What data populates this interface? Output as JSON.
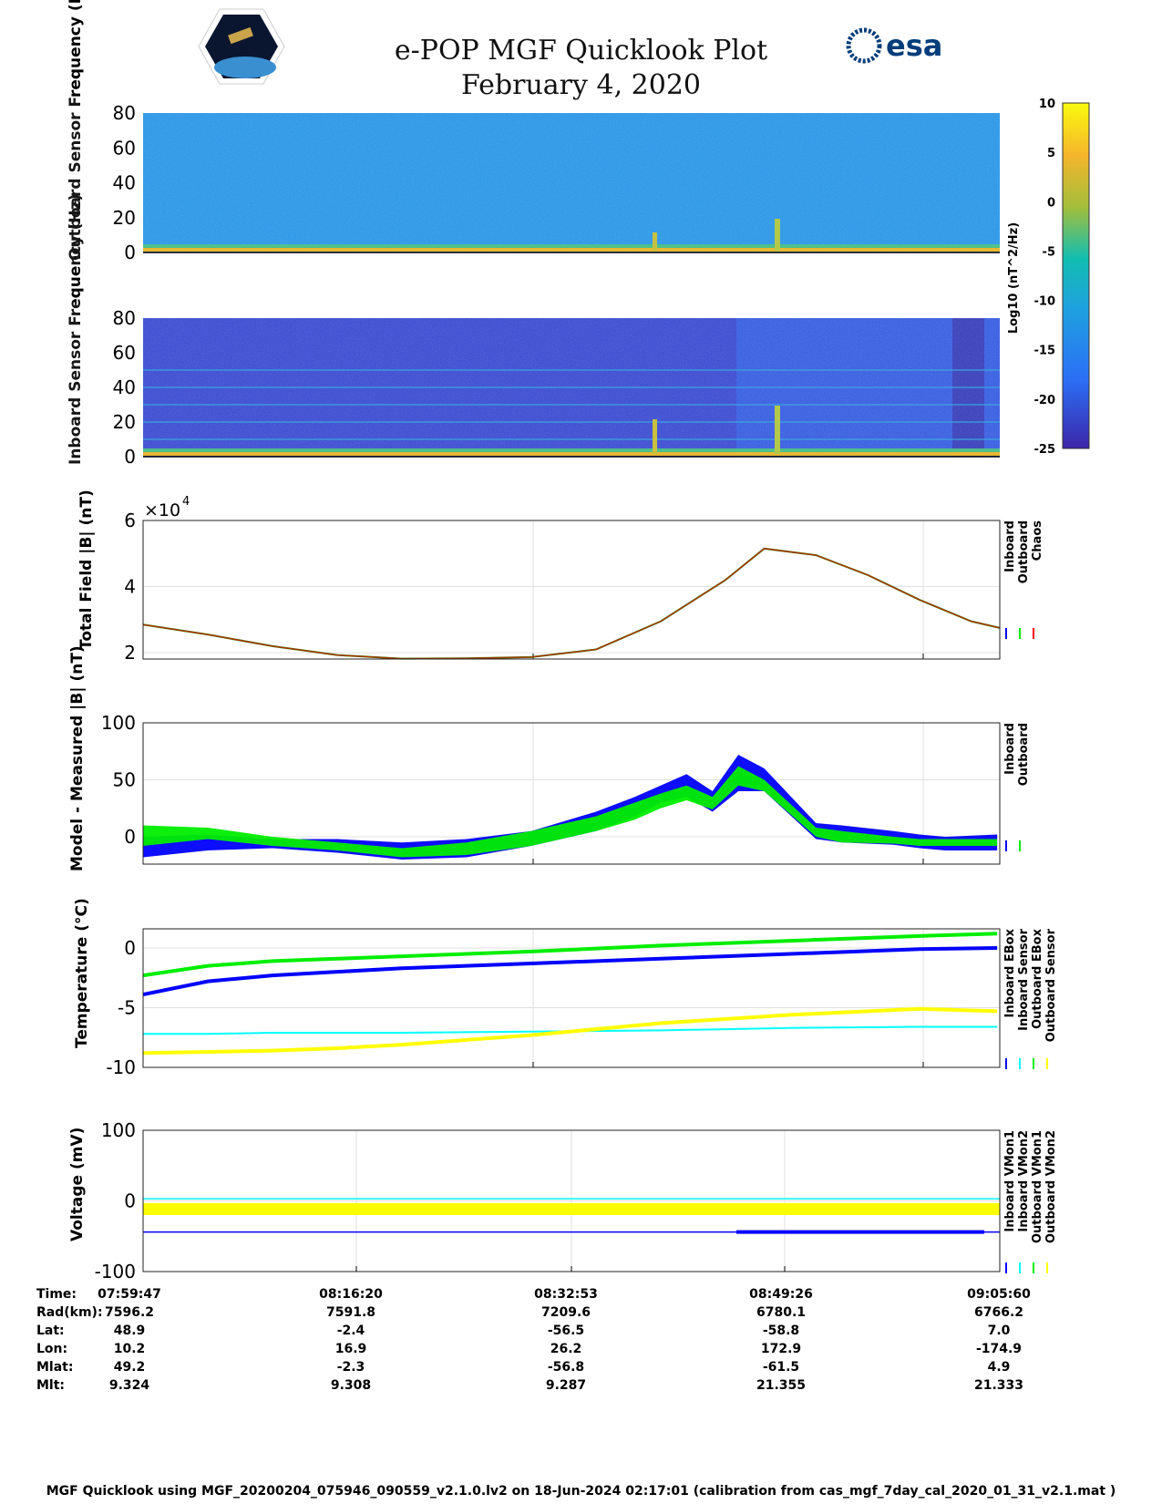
{
  "header": {
    "title": "e-POP MGF Quicklook Plot",
    "date": "February 4, 2020",
    "logo_left": "CASSIOPE",
    "logo_right": "esa"
  },
  "footer": "MGF Quicklook using MGF_20200204_075946_090559_v2.1.0.lv2 on 18-Jun-2024 02:17:01 (calibration from cas_mgf_7day_cal_2020_01_31_v2.1.mat )",
  "table": {
    "labels": [
      "Time:",
      "Rad(km):",
      "Lat:",
      "Lon:",
      "Mlat:",
      "Mlt:"
    ],
    "columns": [
      [
        "07:59:47",
        "7596.2",
        "48.9",
        "10.2",
        "49.2",
        "9.324"
      ],
      [
        "08:16:20",
        "7591.8",
        "-2.4",
        "16.9",
        "-2.3",
        "9.308"
      ],
      [
        "08:32:53",
        "7209.6",
        "-56.5",
        "26.2",
        "-56.8",
        "9.287"
      ],
      [
        "08:49:26",
        "6780.1",
        "-58.8",
        "172.9",
        "-61.5",
        "21.355"
      ],
      [
        "09:05:60",
        "6766.2",
        "7.0",
        "-174.9",
        "4.9",
        "21.333"
      ]
    ]
  },
  "chart_data": [
    {
      "type": "heatmap",
      "ylabel": "Outboard Sensor Frequency (Hz)",
      "yticks": [
        "80",
        "60",
        "40",
        "20",
        "0"
      ],
      "ylim": [
        0,
        80
      ]
    },
    {
      "type": "heatmap",
      "ylabel": "Inboard Sensor Frequency (Hz)",
      "yticks": [
        "80",
        "60",
        "40",
        "20",
        "0"
      ],
      "ylim": [
        0,
        80
      ]
    },
    {
      "type": "colorbar",
      "label": "Log10 (nT^2/Hz)",
      "ticks": [
        "10",
        "5",
        "0",
        "-5",
        "-10",
        "-15",
        "-20",
        "-25"
      ],
      "range": [
        -25,
        10
      ]
    },
    {
      "type": "line",
      "ylabel": "Total Field |B| (nT)",
      "multiplier": "×10",
      "exponent": "4",
      "yticks": [
        "6",
        "4",
        "2"
      ],
      "ylim": [
        1.81,
        6
      ],
      "legend": [
        "Inboard",
        "Outboard",
        "Chaos"
      ],
      "colors": [
        "#0000ff",
        "#00ee00",
        "#ff0000"
      ],
      "x": [
        0,
        5,
        10,
        15,
        20,
        25,
        30,
        35,
        40,
        45,
        48,
        52,
        56,
        60,
        64,
        66.2
      ],
      "y": [
        2.85,
        2.55,
        2.2,
        1.93,
        1.82,
        1.83,
        1.87,
        2.1,
        2.95,
        4.2,
        5.15,
        4.95,
        4.35,
        3.6,
        2.95,
        2.75
      ]
    },
    {
      "type": "band",
      "ylabel": "Model - Measured |B| (nT)",
      "yticks": [
        "100",
        "50",
        "0"
      ],
      "ylim": [
        -24,
        100
      ],
      "legend": [
        "Inboard",
        "Outboard"
      ],
      "colors": [
        "#0000ff",
        "#00ee00"
      ],
      "x": [
        0,
        5,
        10,
        15,
        20,
        25,
        30,
        35,
        38,
        40,
        42,
        44,
        46,
        48,
        52,
        54,
        58,
        60,
        62,
        66
      ],
      "series": [
        {
          "name": "Inboard",
          "lo": [
            -18,
            -12,
            -10,
            -14,
            -20,
            -18,
            -8,
            5,
            18,
            30,
            35,
            22,
            40,
            40,
            -2,
            -5,
            -7,
            -10,
            -12,
            -12
          ],
          "hi": [
            0,
            2,
            -2,
            -2,
            -5,
            -2,
            5,
            22,
            35,
            45,
            55,
            40,
            72,
            60,
            12,
            10,
            5,
            2,
            0,
            2
          ]
        },
        {
          "name": "Outboard",
          "lo": [
            -8,
            -2,
            -8,
            -12,
            -18,
            -16,
            -8,
            5,
            15,
            25,
            32,
            24,
            45,
            40,
            0,
            -5,
            -6,
            -8,
            -8,
            -8
          ],
          "hi": [
            10,
            8,
            0,
            -5,
            -10,
            -5,
            5,
            18,
            30,
            38,
            45,
            35,
            62,
            50,
            8,
            5,
            0,
            -2,
            -2,
            -2
          ]
        }
      ]
    },
    {
      "type": "line",
      "ylabel": "Temperature (°C)",
      "yticks": [
        "0",
        "-5",
        "-10"
      ],
      "ylim": [
        -10,
        1.6
      ],
      "legend": [
        "Inboard EBox",
        "Inboard Sensor",
        "Outboard EBox",
        "Outboard Sensor"
      ],
      "colors": [
        "#0000ff",
        "#00ffff",
        "#00ee00",
        "#ffff00"
      ],
      "x": [
        0,
        5,
        10,
        15,
        20,
        30,
        40,
        50,
        60,
        66
      ],
      "series": [
        [
          -3.9,
          -2.8,
          -2.3,
          -2,
          -1.7,
          -1.3,
          -0.9,
          -0.5,
          -0.1,
          0
        ],
        [
          -7.2,
          -7.2,
          -7.1,
          -7.1,
          -7.1,
          -7,
          -6.9,
          -6.7,
          -6.6,
          -6.6
        ],
        [
          -2.3,
          -1.5,
          -1.1,
          -0.9,
          -0.7,
          -0.3,
          0.2,
          0.6,
          1,
          1.2
        ],
        [
          -8.8,
          -8.7,
          -8.6,
          -8.4,
          -8.1,
          -7.3,
          -6.3,
          -5.6,
          -5.1,
          -5.3
        ]
      ]
    },
    {
      "type": "line",
      "ylabel": "Voltage (mV)",
      "yticks": [
        "100",
        "0",
        "-100"
      ],
      "ylim": [
        -100,
        100
      ],
      "legend": [
        "Inboard VMon1",
        "Inboard VMon2",
        "Outboard VMon1",
        "Outboard VMon2"
      ],
      "colors": [
        "#0000ff",
        "#00ffff",
        "#00ee00",
        "#ffff00"
      ],
      "series": [
        {
          "level": -44
        },
        {
          "level": 3
        },
        {
          "level": -10
        },
        {
          "lo": -20,
          "hi": -3
        }
      ]
    }
  ]
}
